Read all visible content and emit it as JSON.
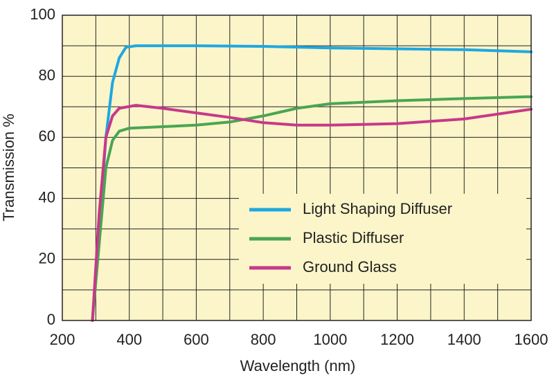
{
  "chart_data": {
    "type": "line",
    "xlabel": "Wavelength (nm)",
    "ylabel": "Transmission %",
    "xlim": [
      200,
      1600
    ],
    "ylim": [
      0,
      100
    ],
    "xticks": [
      200,
      400,
      600,
      800,
      1000,
      1200,
      1400,
      1600
    ],
    "yticks": [
      0,
      20,
      40,
      60,
      80,
      100
    ],
    "grid": true,
    "legend": "lower right",
    "series": [
      {
        "name": "Light Shaping Diffuser",
        "color": "#1ea8e0",
        "x": [
          290,
          310,
          330,
          350,
          370,
          390,
          420,
          600,
          800,
          1000,
          1200,
          1400,
          1600
        ],
        "values": [
          0,
          30,
          60,
          78,
          86,
          89.5,
          90,
          90,
          89.8,
          89.3,
          89,
          88.7,
          88
        ]
      },
      {
        "name": "Plastic Diffuser",
        "color": "#4aa553",
        "x": [
          290,
          310,
          330,
          350,
          370,
          400,
          500,
          600,
          700,
          800,
          900,
          1000,
          1200,
          1400,
          1600
        ],
        "values": [
          0,
          25,
          50,
          59,
          62,
          63,
          63.5,
          64,
          65,
          67,
          69.5,
          71,
          72,
          72.7,
          73.3
        ]
      },
      {
        "name": "Ground Glass",
        "color": "#c8388a",
        "x": [
          290,
          310,
          330,
          350,
          370,
          420,
          500,
          600,
          700,
          800,
          900,
          1000,
          1200,
          1400,
          1600
        ],
        "values": [
          0,
          35,
          60,
          67,
          69.5,
          70.5,
          69.5,
          68,
          66.5,
          64.8,
          64,
          64,
          64.5,
          66,
          69.2
        ]
      }
    ]
  }
}
